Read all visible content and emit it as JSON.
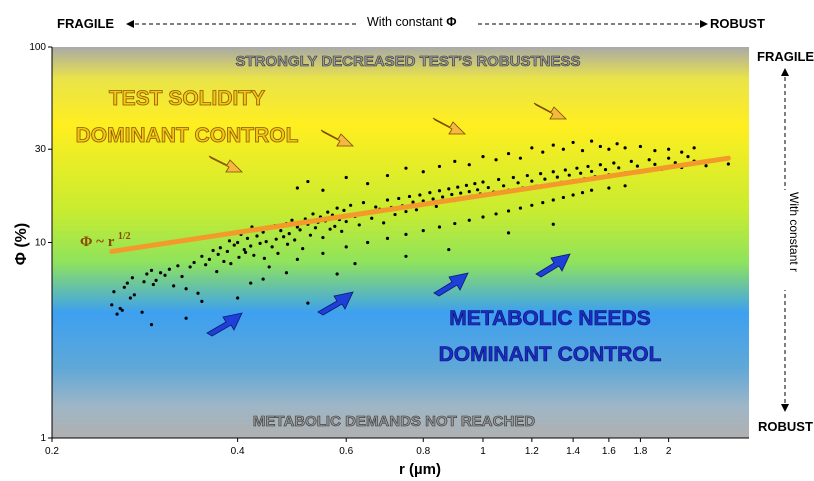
{
  "chart_data": {
    "type": "scatter",
    "title": "",
    "xlabel": "r (µm)",
    "ylabel": "Φ (%)",
    "x_scale": "log",
    "y_scale": "log",
    "xlim": [
      0.2,
      2.7
    ],
    "ylim": [
      1,
      100
    ],
    "x_ticks": [
      "0.2",
      "0.4",
      "0.6",
      "0.8",
      "1",
      "1.2",
      "1.4",
      "1.6",
      "1.8",
      "2"
    ],
    "x_tick_values": [
      0.2,
      0.4,
      0.6,
      0.8,
      1,
      1.2,
      1.4,
      1.6,
      1.8,
      2
    ],
    "y_ticks": [
      "1",
      "10",
      "30",
      "100"
    ],
    "y_tick_values": [
      1,
      10,
      30,
      100
    ],
    "fit_line": {
      "label": "Φ ~ r^1/2",
      "x": [
        0.25,
        2.5
      ],
      "y": [
        9.0,
        27.0
      ],
      "color": "#f39a2a"
    },
    "scatter_points": [
      [
        0.25,
        4.8
      ],
      [
        0.252,
        5.6
      ],
      [
        0.255,
        4.3
      ],
      [
        0.258,
        4.6
      ],
      [
        0.26,
        4.5
      ],
      [
        0.262,
        5.9
      ],
      [
        0.265,
        6.2
      ],
      [
        0.268,
        5.2
      ],
      [
        0.27,
        6.6
      ],
      [
        0.272,
        5.4
      ],
      [
        0.28,
        4.4
      ],
      [
        0.282,
        6.3
      ],
      [
        0.285,
        6.9
      ],
      [
        0.29,
        7.2
      ],
      [
        0.292,
        6.1
      ],
      [
        0.295,
        6.4
      ],
      [
        0.3,
        7.0
      ],
      [
        0.305,
        6.8
      ],
      [
        0.31,
        7.3
      ],
      [
        0.315,
        6.0
      ],
      [
        0.32,
        7.6
      ],
      [
        0.325,
        6.7
      ],
      [
        0.33,
        5.8
      ],
      [
        0.335,
        7.5
      ],
      [
        0.34,
        7.9
      ],
      [
        0.345,
        5.5
      ],
      [
        0.35,
        8.5
      ],
      [
        0.355,
        7.7
      ],
      [
        0.36,
        8.2
      ],
      [
        0.365,
        9.1
      ],
      [
        0.37,
        7.1
      ],
      [
        0.372,
        8.7
      ],
      [
        0.375,
        9.4
      ],
      [
        0.38,
        8.0
      ],
      [
        0.385,
        9.0
      ],
      [
        0.388,
        10.2
      ],
      [
        0.39,
        7.8
      ],
      [
        0.395,
        9.7
      ],
      [
        0.4,
        10.0
      ],
      [
        0.402,
        8.4
      ],
      [
        0.405,
        11.0
      ],
      [
        0.41,
        9.2
      ],
      [
        0.412,
        8.9
      ],
      [
        0.415,
        10.5
      ],
      [
        0.42,
        9.6
      ],
      [
        0.422,
        12.0
      ],
      [
        0.425,
        8.6
      ],
      [
        0.43,
        10.8
      ],
      [
        0.435,
        9.9
      ],
      [
        0.44,
        11.3
      ],
      [
        0.442,
        8.3
      ],
      [
        0.445,
        10.1
      ],
      [
        0.45,
        11.8
      ],
      [
        0.455,
        9.5
      ],
      [
        0.46,
        12.2
      ],
      [
        0.462,
        10.4
      ],
      [
        0.465,
        8.8
      ],
      [
        0.47,
        11.5
      ],
      [
        0.475,
        10.7
      ],
      [
        0.48,
        12.5
      ],
      [
        0.482,
        9.8
      ],
      [
        0.485,
        11.1
      ],
      [
        0.49,
        13.0
      ],
      [
        0.495,
        10.3
      ],
      [
        0.5,
        12.0
      ],
      [
        0.505,
        11.6
      ],
      [
        0.51,
        9.3
      ],
      [
        0.515,
        13.2
      ],
      [
        0.52,
        12.4
      ],
      [
        0.525,
        10.9
      ],
      [
        0.53,
        14.0
      ],
      [
        0.535,
        11.9
      ],
      [
        0.54,
        12.7
      ],
      [
        0.545,
        13.5
      ],
      [
        0.55,
        10.6
      ],
      [
        0.555,
        12.9
      ],
      [
        0.56,
        14.3
      ],
      [
        0.565,
        11.7
      ],
      [
        0.57,
        13.8
      ],
      [
        0.575,
        12.1
      ],
      [
        0.58,
        15.0
      ],
      [
        0.585,
        13.1
      ],
      [
        0.59,
        11.4
      ],
      [
        0.595,
        14.6
      ],
      [
        0.6,
        12.8
      ],
      [
        0.61,
        15.5
      ],
      [
        0.62,
        13.6
      ],
      [
        0.63,
        12.3
      ],
      [
        0.64,
        16.0
      ],
      [
        0.65,
        14.1
      ],
      [
        0.66,
        13.3
      ],
      [
        0.67,
        15.2
      ],
      [
        0.68,
        14.8
      ],
      [
        0.69,
        12.6
      ],
      [
        0.7,
        16.5
      ],
      [
        0.71,
        15.1
      ],
      [
        0.72,
        13.9
      ],
      [
        0.73,
        16.8
      ],
      [
        0.74,
        15.4
      ],
      [
        0.75,
        14.4
      ],
      [
        0.76,
        17.2
      ],
      [
        0.77,
        16.1
      ],
      [
        0.78,
        14.7
      ],
      [
        0.79,
        17.5
      ],
      [
        0.8,
        16.3
      ],
      [
        0.81,
        15.7
      ],
      [
        0.82,
        18.0
      ],
      [
        0.83,
        16.7
      ],
      [
        0.84,
        15.3
      ],
      [
        0.85,
        18.4
      ],
      [
        0.86,
        17.1
      ],
      [
        0.87,
        16.2
      ],
      [
        0.88,
        18.8
      ],
      [
        0.89,
        17.6
      ],
      [
        0.9,
        16.4
      ],
      [
        0.91,
        19.2
      ],
      [
        0.92,
        17.9
      ],
      [
        0.93,
        16.9
      ],
      [
        0.94,
        19.6
      ],
      [
        0.95,
        18.2
      ],
      [
        0.96,
        17.3
      ],
      [
        0.97,
        20.0
      ],
      [
        0.98,
        18.6
      ],
      [
        0.99,
        17.7
      ],
      [
        1.0,
        20.4
      ],
      [
        1.02,
        19.1
      ],
      [
        1.04,
        18.1
      ],
      [
        1.06,
        21.0
      ],
      [
        1.08,
        19.5
      ],
      [
        1.1,
        18.5
      ],
      [
        1.12,
        21.5
      ],
      [
        1.14,
        20.2
      ],
      [
        1.16,
        19.0
      ],
      [
        1.18,
        22.0
      ],
      [
        1.2,
        20.6
      ],
      [
        1.22,
        19.4
      ],
      [
        1.24,
        22.5
      ],
      [
        1.26,
        21.1
      ],
      [
        1.28,
        19.8
      ],
      [
        1.3,
        23.0
      ],
      [
        1.32,
        21.6
      ],
      [
        1.34,
        20.3
      ],
      [
        1.36,
        23.5
      ],
      [
        1.38,
        22.1
      ],
      [
        1.4,
        20.7
      ],
      [
        1.42,
        24.0
      ],
      [
        1.44,
        22.6
      ],
      [
        1.46,
        21.2
      ],
      [
        1.48,
        24.5
      ],
      [
        1.5,
        23.1
      ],
      [
        1.52,
        21.7
      ],
      [
        1.55,
        25.0
      ],
      [
        1.58,
        23.6
      ],
      [
        1.6,
        22.2
      ],
      [
        1.63,
        25.5
      ],
      [
        1.66,
        24.1
      ],
      [
        1.7,
        22.7
      ],
      [
        1.74,
        26.0
      ],
      [
        1.78,
        24.6
      ],
      [
        1.82,
        23.2
      ],
      [
        1.86,
        26.5
      ],
      [
        1.9,
        25.1
      ],
      [
        1.95,
        23.7
      ],
      [
        2.0,
        27.0
      ],
      [
        2.05,
        25.6
      ],
      [
        2.1,
        24.2
      ],
      [
        2.15,
        27.5
      ],
      [
        2.2,
        26.1
      ],
      [
        2.3,
        24.7
      ],
      [
        2.4,
        26.6
      ],
      [
        2.5,
        25.2
      ],
      [
        0.5,
        19.0
      ],
      [
        0.52,
        20.5
      ],
      [
        0.55,
        18.5
      ],
      [
        0.6,
        21.5
      ],
      [
        0.65,
        20.0
      ],
      [
        0.7,
        22.0
      ],
      [
        0.75,
        24.0
      ],
      [
        0.8,
        23.0
      ],
      [
        0.85,
        24.5
      ],
      [
        0.9,
        26.0
      ],
      [
        0.95,
        25.0
      ],
      [
        1.0,
        27.5
      ],
      [
        1.05,
        26.5
      ],
      [
        1.1,
        28.5
      ],
      [
        1.15,
        27.0
      ],
      [
        1.2,
        30.5
      ],
      [
        1.25,
        29.0
      ],
      [
        1.3,
        31.5
      ],
      [
        1.35,
        30.0
      ],
      [
        1.4,
        32.5
      ],
      [
        1.45,
        29.5
      ],
      [
        1.5,
        33.0
      ],
      [
        1.55,
        31.0
      ],
      [
        1.6,
        30.0
      ],
      [
        1.65,
        32.0
      ],
      [
        1.7,
        30.5
      ],
      [
        1.8,
        31.0
      ],
      [
        1.9,
        29.5
      ],
      [
        2.0,
        30.0
      ],
      [
        2.1,
        29.0
      ],
      [
        2.2,
        30.5
      ],
      [
        0.45,
        7.5
      ],
      [
        0.48,
        7.0
      ],
      [
        0.5,
        8.2
      ],
      [
        0.55,
        8.8
      ],
      [
        0.6,
        9.5
      ],
      [
        0.65,
        10.0
      ],
      [
        0.7,
        10.5
      ],
      [
        0.75,
        11.0
      ],
      [
        0.8,
        11.5
      ],
      [
        0.85,
        12.0
      ],
      [
        0.9,
        12.5
      ],
      [
        0.95,
        13.0
      ],
      [
        1.0,
        13.5
      ],
      [
        1.05,
        14.0
      ],
      [
        1.1,
        14.5
      ],
      [
        1.15,
        15.0
      ],
      [
        1.2,
        15.5
      ],
      [
        1.25,
        16.0
      ],
      [
        1.3,
        16.5
      ],
      [
        1.35,
        17.0
      ],
      [
        1.4,
        17.5
      ],
      [
        1.45,
        18.0
      ],
      [
        1.5,
        18.5
      ],
      [
        1.6,
        19.0
      ],
      [
        1.7,
        19.5
      ],
      [
        0.62,
        7.8
      ],
      [
        0.75,
        8.5
      ],
      [
        0.88,
        9.2
      ],
      [
        1.1,
        11.2
      ],
      [
        1.3,
        12.4
      ],
      [
        0.42,
        6.2
      ],
      [
        0.33,
        4.1
      ],
      [
        0.29,
        3.8
      ],
      [
        0.4,
        5.2
      ],
      [
        0.52,
        4.9
      ],
      [
        0.35,
        5.0
      ],
      [
        0.44,
        6.5
      ],
      [
        0.58,
        6.9
      ]
    ],
    "grid": false,
    "legend": "none"
  },
  "annotations": {
    "top_header": {
      "left": "FRAGILE",
      "center": "With constant",
      "center_symbol": "Φ",
      "right": "ROBUST"
    },
    "right_header": {
      "top": "FRAGILE",
      "center": "With constant r",
      "bottom": "ROBUST"
    },
    "band_top": "STRONGLY DECREASED TEST’S ROBUSTNESS",
    "band_bottom": "METABOLIC DEMANDS NOT REACHED",
    "solidity_line1": "TEST SOLIDITY",
    "solidity_line2": "DOMINANT CONTROL",
    "metabolic_line1": "METABOLIC NEEDS",
    "metabolic_line2": "DOMINANT CONTROL",
    "fit_label_main": "Φ ~ r",
    "fit_label_exp": "1/2"
  },
  "colors": {
    "gradient_top": "#a9a9a9",
    "yellow": "#ffee20",
    "green": "#a8e64a",
    "blue": "#3da0f0",
    "gradient_bottom": "#b0b0b0",
    "fit_line": "#f39a2a",
    "solidity_text": "#f5c518",
    "metabolic_text": "#1a2cc8",
    "orange_arrow": "#f5b940",
    "blue_arrow": "#1e3fd8"
  },
  "arrows": {
    "orange": [
      "arrow-orange",
      "arrow-orange",
      "arrow-orange",
      "arrow-orange"
    ],
    "blue": [
      "arrow-blue",
      "arrow-blue",
      "arrow-blue",
      "arrow-blue",
      "arrow-blue"
    ]
  }
}
